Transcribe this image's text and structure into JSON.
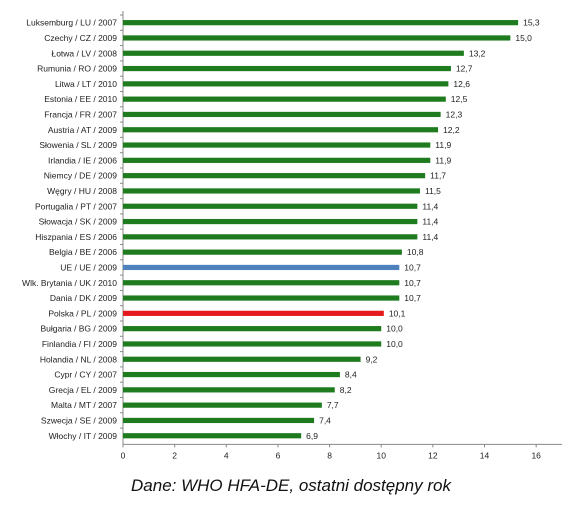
{
  "chart_data": {
    "type": "bar",
    "orientation": "horizontal",
    "categories": [
      "Luksemburg / LU / 2007",
      "Czechy / CZ / 2009",
      "Łotwa / LV / 2008",
      "Rumunia / RO / 2009",
      "Litwa / LT / 2010",
      "Estonia / EE / 2010",
      "Francja / FR / 2007",
      "Austria / AT / 2009",
      "Słowenia / SL / 2009",
      "Irlandia / IE / 2006",
      "Niemcy / DE / 2009",
      "Węgry / HU / 2008",
      "Portugalia / PT / 2007",
      "Słowacja / SK / 2009",
      "Hiszpania / ES / 2006",
      "Belgia / BE / 2006",
      "UE / UE / 2009",
      "Wlk. Brytania / UK / 2010",
      "Dania / DK / 2009",
      "Polska / PL / 2009",
      "Bułgaria / BG / 2009",
      "Finlandia / FI / 2009",
      "Holandia / NL / 2008",
      "Cypr / CY / 2007",
      "Grecja / EL / 2009",
      "Malta / MT / 2007",
      "Szwecja / SE / 2009",
      "Włochy / IT / 2009"
    ],
    "values": [
      15.3,
      15.0,
      13.2,
      12.7,
      12.6,
      12.5,
      12.3,
      12.2,
      11.9,
      11.9,
      11.7,
      11.5,
      11.4,
      11.4,
      11.4,
      10.8,
      10.7,
      10.7,
      10.7,
      10.1,
      10.0,
      10.0,
      9.2,
      8.4,
      8.2,
      7.7,
      7.4,
      6.9
    ],
    "value_labels": [
      "15,3",
      "15,0",
      "13,2",
      "12,7",
      "12,6",
      "12,5",
      "12,3",
      "12,2",
      "11,9",
      "11,9",
      "11,7",
      "11,5",
      "11,4",
      "11,4",
      "11,4",
      "10,8",
      "10,7",
      "10,7",
      "10,7",
      "10,1",
      "10,0",
      "10,0",
      "9,2",
      "8,4",
      "8,2",
      "7,7",
      "7,4",
      "6,9"
    ],
    "xlim": [
      0,
      17
    ],
    "xticks": [
      0,
      2,
      4,
      6,
      8,
      10,
      12,
      14,
      16
    ],
    "xlabel": "",
    "ylabel": "",
    "title": "",
    "grid": false,
    "colors": {
      "default": "#1e7b1e",
      "highlight_eu": "#4f81bd",
      "highlight_pl": "#e41a1c",
      "axis": "#888888"
    },
    "highlights": {
      "UE / UE / 2009": "highlight_eu",
      "Polska / PL / 2009": "highlight_pl"
    }
  },
  "caption": "Dane: WHO HFA-DE, ostatni dostępny rok"
}
